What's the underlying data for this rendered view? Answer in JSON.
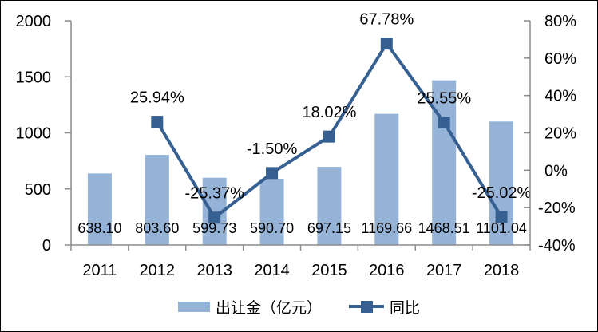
{
  "chart_data": {
    "type": "bar+line",
    "categories": [
      "2011",
      "2012",
      "2013",
      "2014",
      "2015",
      "2016",
      "2017",
      "2018"
    ],
    "series": [
      {
        "name": "出让金（亿元）",
        "type": "bar",
        "axis": "left",
        "values": [
          638.1,
          803.6,
          599.73,
          590.7,
          697.15,
          1169.66,
          1468.51,
          1101.04
        ],
        "value_labels": [
          "638.10",
          "803.60",
          "599.73",
          "590.70",
          "697.15",
          "1169.66",
          "1468.51",
          "1101.04"
        ],
        "color": "#95B3D7"
      },
      {
        "name": "同比",
        "type": "line",
        "axis": "right",
        "values": [
          null,
          25.94,
          -25.37,
          -1.5,
          18.02,
          67.78,
          25.55,
          -25.02
        ],
        "value_labels": [
          null,
          "25.94%",
          "-25.37%",
          "-1.50%",
          "18.02%",
          "67.78%",
          "25.55%",
          "-25.02%"
        ],
        "color": "#366092"
      }
    ],
    "left_axis": {
      "min": 0,
      "max": 2000,
      "tick_labels": [
        "2000",
        "1500",
        "1000",
        "500",
        "0"
      ],
      "tick_values": [
        2000,
        1500,
        1000,
        500,
        0
      ]
    },
    "right_axis": {
      "min": -40,
      "max": 80,
      "tick_labels": [
        "80%",
        "60%",
        "40%",
        "20%",
        "0%",
        "-20%",
        "-40%"
      ],
      "tick_values": [
        80,
        60,
        40,
        20,
        0,
        -20,
        -40
      ]
    },
    "legend_position": "bottom",
    "grid": false
  },
  "colors": {
    "bar": "#95B3D7",
    "line": "#366092",
    "axis": "#8C8C8C",
    "text": "#000000",
    "background": "#FFFFFF"
  }
}
